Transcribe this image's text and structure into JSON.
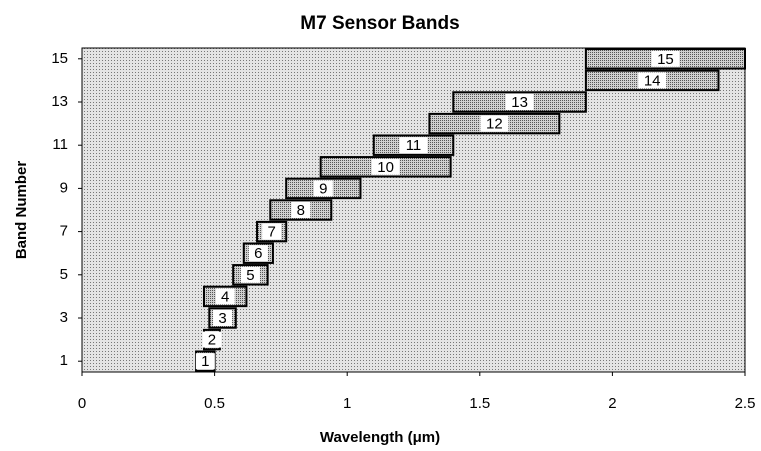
{
  "chart_data": {
    "type": "range_bar",
    "title": "M7 Sensor Bands",
    "x_label": "Wavelength (μm)",
    "y_label": "Band Number",
    "labels": [
      "1",
      "2",
      "3",
      "4",
      "5",
      "6",
      "7",
      "8",
      "9",
      "10",
      "11",
      "12",
      "13",
      "14",
      "15"
    ],
    "y": [
      1,
      2,
      3,
      4,
      5,
      6,
      7,
      8,
      9,
      10,
      11,
      12,
      13,
      14,
      15
    ],
    "starts": [
      0.43,
      0.46,
      0.48,
      0.46,
      0.57,
      0.61,
      0.66,
      0.71,
      0.77,
      0.9,
      1.1,
      1.31,
      1.4,
      1.9,
      1.9
    ],
    "ends": [
      0.5,
      0.52,
      0.58,
      0.62,
      0.7,
      0.72,
      0.77,
      0.94,
      1.05,
      1.39,
      1.4,
      1.8,
      1.9,
      2.4,
      2.5
    ],
    "xlim": [
      0,
      2.5
    ],
    "xticks": [
      0,
      0.5,
      1,
      1.5,
      2,
      2.5
    ],
    "ylim": [
      0.5,
      15.5
    ],
    "yticks": [
      1,
      3,
      5,
      7,
      9,
      11,
      13,
      15
    ]
  }
}
